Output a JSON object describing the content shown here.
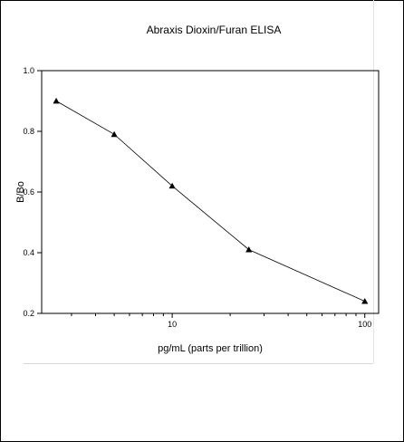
{
  "chart_data": {
    "type": "scatter",
    "title": "Abraxis Dioxin/Furan ELISA",
    "xlabel": "pg/mL (parts per trillion)",
    "ylabel": "B/Bo",
    "x_scale": "log",
    "xlim": [
      2.1,
      118
    ],
    "ylim": [
      0.2,
      1.0
    ],
    "x_ticks": [
      10,
      100
    ],
    "x_tick_labels": [
      "10",
      "100"
    ],
    "y_ticks": [
      0.2,
      0.4,
      0.6,
      0.8,
      1.0
    ],
    "y_tick_labels": [
      "0.2",
      "0.4",
      "0.6",
      "0.8",
      "1.0"
    ],
    "grid": false,
    "marker": "triangle",
    "line_color": "#000000",
    "series": [
      {
        "x": [
          2.5,
          5,
          10,
          25,
          100
        ],
        "y": [
          0.9,
          0.79,
          0.62,
          0.41,
          0.24
        ]
      }
    ]
  }
}
